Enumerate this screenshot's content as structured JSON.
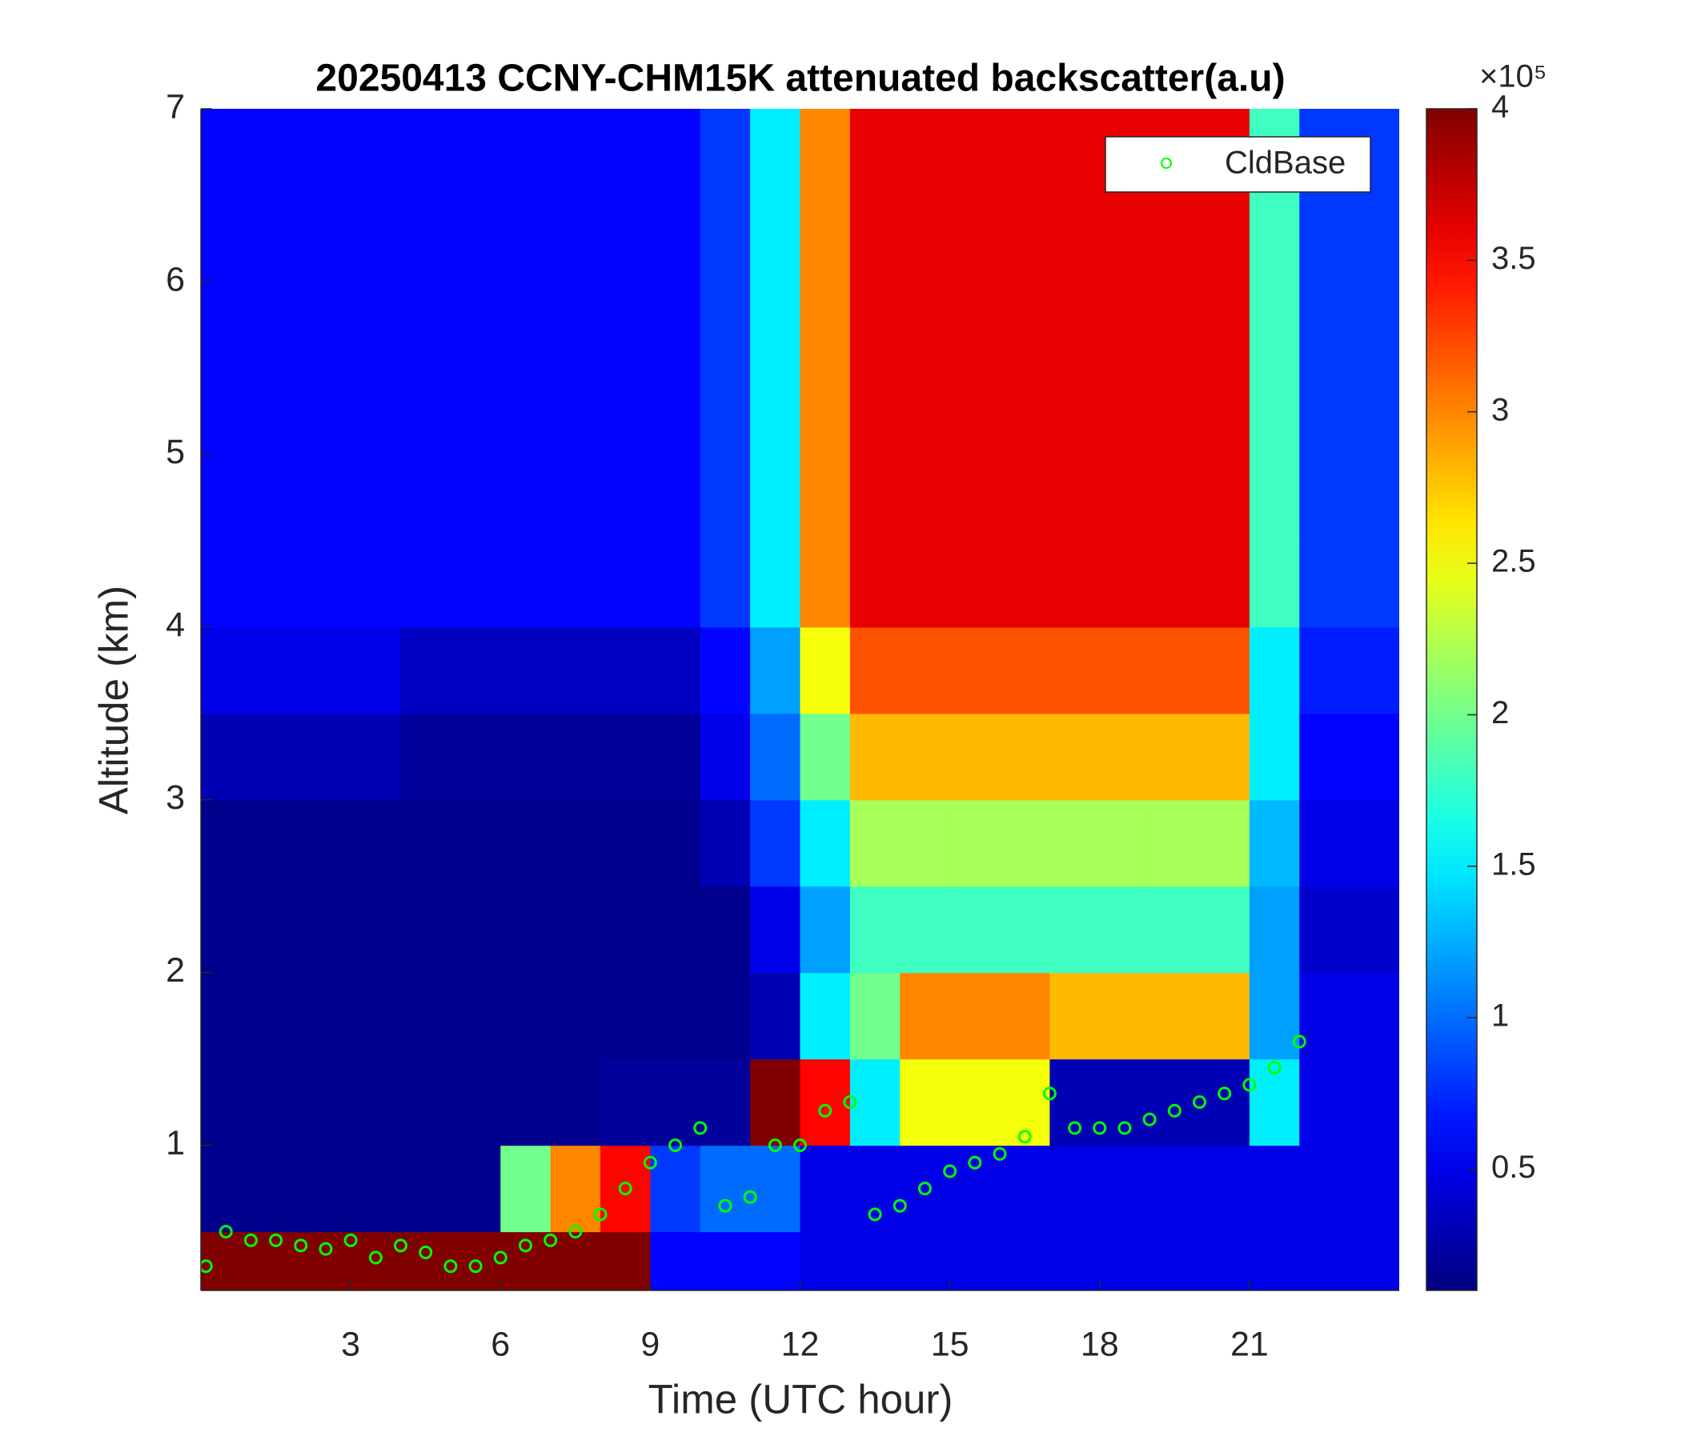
{
  "chart_data": {
    "type": "heatmap",
    "title": "20250413 CCNY-CHM15K attenuated backscatter(a.u)",
    "x_label": "Time (UTC hour)",
    "y_label": "Altitude (km)",
    "xlim": [
      0,
      24
    ],
    "xticks": [
      3,
      6,
      9,
      12,
      15,
      18,
      21
    ],
    "ylim": [
      0.16,
      7
    ],
    "yticks": [
      1,
      2,
      3,
      4,
      5,
      6,
      7
    ],
    "colormap": "jet",
    "clim": [
      0.1,
      4
    ],
    "colorbar_ticks": [
      0.5,
      1,
      1.5,
      2,
      2.5,
      3,
      3.5,
      4
    ],
    "colorbar_multiplier": "×10⁵",
    "x": [
      0.5,
      1.5,
      2.5,
      3.5,
      4.5,
      5.5,
      6.5,
      7.5,
      8.5,
      9.5,
      10.5,
      11.5,
      12.5,
      13.5,
      14.5,
      15.5,
      16.5,
      17.5,
      18.5,
      19.5,
      20.5,
      21.5,
      22.5,
      23.5
    ],
    "y": [
      0.25,
      0.75,
      1.25,
      1.75,
      2.25,
      2.75,
      3.25,
      3.75,
      4.25,
      4.75,
      5.25,
      5.75,
      6.25,
      6.75
    ],
    "z": [
      [
        4,
        4,
        4,
        4,
        4,
        4,
        4,
        4,
        4,
        0.6,
        0.6,
        0.6,
        0.5,
        0.5,
        0.5,
        0.5,
        0.5,
        0.5,
        0.5,
        0.5,
        0.5,
        0.5,
        0.5,
        0.5
      ],
      [
        0.15,
        0.15,
        0.15,
        0.15,
        0.15,
        0.15,
        2,
        3,
        3.5,
        0.8,
        1,
        1,
        0.5,
        0.5,
        0.5,
        0.5,
        0.5,
        0.5,
        0.5,
        0.5,
        0.5,
        0.5,
        0.5,
        0.5
      ],
      [
        0.15,
        0.15,
        0.15,
        0.15,
        0.15,
        0.15,
        0.15,
        0.15,
        0.2,
        0.2,
        0.2,
        4,
        3.5,
        1.5,
        2.5,
        2.5,
        2.5,
        0.3,
        0.3,
        0.3,
        0.3,
        1.5,
        0.5,
        0.5
      ],
      [
        0.15,
        0.15,
        0.15,
        0.15,
        0.15,
        0.15,
        0.15,
        0.15,
        0.15,
        0.15,
        0.15,
        0.3,
        1.5,
        2,
        3,
        3,
        3,
        2.8,
        2.8,
        2.8,
        2.8,
        1.2,
        0.5,
        0.5
      ],
      [
        0.15,
        0.15,
        0.15,
        0.15,
        0.15,
        0.15,
        0.15,
        0.15,
        0.15,
        0.15,
        0.15,
        0.5,
        1.2,
        1.8,
        1.8,
        1.8,
        1.8,
        1.8,
        1.8,
        1.8,
        1.8,
        1.2,
        0.4,
        0.4
      ],
      [
        0.15,
        0.15,
        0.15,
        0.15,
        0.15,
        0.15,
        0.15,
        0.15,
        0.15,
        0.15,
        0.3,
        0.8,
        1.5,
        2.2,
        2.2,
        2.2,
        2.2,
        2.2,
        2.2,
        2.2,
        2.2,
        1.3,
        0.5,
        0.5
      ],
      [
        0.3,
        0.3,
        0.3,
        0.3,
        0.2,
        0.2,
        0.2,
        0.2,
        0.2,
        0.2,
        0.5,
        1,
        2,
        2.8,
        2.8,
        2.8,
        2.8,
        2.8,
        2.8,
        2.8,
        2.8,
        1.5,
        0.6,
        0.6
      ],
      [
        0.5,
        0.5,
        0.5,
        0.5,
        0.35,
        0.35,
        0.35,
        0.35,
        0.35,
        0.35,
        0.6,
        1.2,
        2.5,
        3.2,
        3.2,
        3.2,
        3.2,
        3.2,
        3.2,
        3.2,
        3.2,
        1.5,
        0.7,
        0.7
      ],
      [
        0.6,
        0.6,
        0.6,
        0.6,
        0.6,
        0.6,
        0.6,
        0.6,
        0.6,
        0.6,
        0.8,
        1.5,
        3,
        3.6,
        3.6,
        3.6,
        3.6,
        3.6,
        3.6,
        3.6,
        3.6,
        1.8,
        0.8,
        0.8
      ],
      [
        0.6,
        0.6,
        0.6,
        0.6,
        0.6,
        0.6,
        0.6,
        0.6,
        0.6,
        0.6,
        0.8,
        1.5,
        3,
        3.6,
        3.6,
        3.6,
        3.6,
        3.6,
        3.6,
        3.6,
        3.6,
        1.8,
        0.8,
        0.8
      ],
      [
        0.6,
        0.6,
        0.6,
        0.6,
        0.6,
        0.6,
        0.6,
        0.6,
        0.6,
        0.6,
        0.8,
        1.5,
        3,
        3.6,
        3.6,
        3.6,
        3.6,
        3.6,
        3.6,
        3.6,
        3.6,
        1.8,
        0.8,
        0.8
      ],
      [
        0.6,
        0.6,
        0.6,
        0.6,
        0.6,
        0.6,
        0.6,
        0.6,
        0.6,
        0.6,
        0.8,
        1.5,
        3,
        3.6,
        3.6,
        3.6,
        3.6,
        3.6,
        3.6,
        3.6,
        3.6,
        1.8,
        0.8,
        0.8
      ],
      [
        0.6,
        0.6,
        0.6,
        0.6,
        0.6,
        0.6,
        0.6,
        0.6,
        0.6,
        0.6,
        0.8,
        1.5,
        3,
        3.6,
        3.6,
        3.6,
        3.6,
        3.6,
        3.6,
        3.6,
        3.6,
        1.8,
        0.8,
        0.8
      ],
      [
        0.6,
        0.6,
        0.6,
        0.6,
        0.6,
        0.6,
        0.6,
        0.6,
        0.6,
        0.6,
        0.8,
        1.5,
        3,
        3.6,
        3.6,
        3.6,
        3.6,
        3.6,
        3.6,
        3.6,
        3.6,
        1.8,
        0.8,
        0.8
      ]
    ],
    "series": [
      {
        "name": "CldBase",
        "type": "scatter",
        "color": "#00ff00",
        "x": [
          0.1,
          0.5,
          1,
          1.5,
          2,
          2.5,
          3,
          3.5,
          4,
          4.5,
          5,
          5.5,
          6,
          6.5,
          7,
          7.5,
          8,
          8.5,
          9,
          9.5,
          10,
          10.5,
          11,
          11.5,
          12,
          12.5,
          13,
          13.5,
          14,
          14.5,
          15,
          15.5,
          16,
          16.5,
          17,
          17.5,
          18,
          18.5,
          19,
          19.5,
          20,
          20.5,
          21,
          21.5,
          22
        ],
        "values": [
          0.3,
          0.5,
          0.45,
          0.45,
          0.42,
          0.4,
          0.45,
          0.35,
          0.42,
          0.38,
          0.3,
          0.3,
          0.35,
          0.42,
          0.45,
          0.5,
          0.6,
          0.75,
          0.9,
          1.0,
          1.1,
          0.65,
          0.7,
          1.0,
          1.0,
          1.2,
          1.25,
          0.6,
          0.65,
          0.75,
          0.85,
          0.9,
          0.95,
          1.05,
          1.3,
          1.1,
          1.1,
          1.1,
          1.15,
          1.2,
          1.25,
          1.3,
          1.35,
          1.45,
          1.6
        ]
      }
    ],
    "legend": "upper right"
  }
}
